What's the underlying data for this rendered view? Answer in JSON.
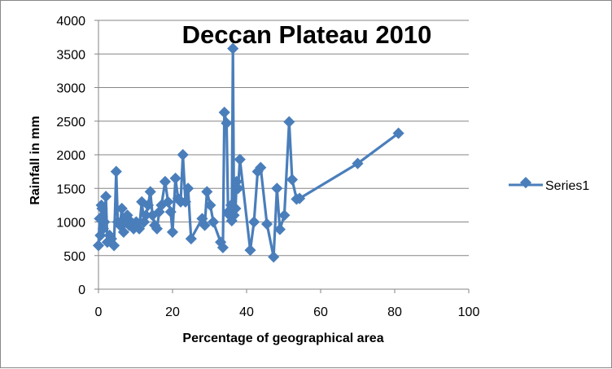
{
  "chart_data": {
    "type": "scatter",
    "title": "Deccan Plateau 2010",
    "xlabel": "Percentage of geographical area",
    "ylabel": "Rainfall in mm",
    "xlim": [
      0,
      100
    ],
    "ylim": [
      0,
      4000
    ],
    "xticks": [
      0,
      20,
      40,
      60,
      80,
      100
    ],
    "yticks": [
      0,
      500,
      1000,
      1500,
      2000,
      2500,
      3000,
      3500,
      4000
    ],
    "grid": true,
    "legend_position": "right",
    "color": "#4a7ebb",
    "series": [
      {
        "name": "Series1",
        "x": [
          0,
          0.3,
          0.5,
          0.8,
          1.0,
          1.3,
          1.6,
          2.0,
          2.4,
          3.0,
          3.5,
          4.2,
          4.8,
          5.2,
          5.8,
          6.3,
          6.8,
          7.3,
          7.8,
          8.3,
          8.8,
          9.5,
          10.2,
          11.0,
          11.7,
          12.3,
          12.8,
          13.4,
          14.0,
          14.6,
          15.2,
          15.8,
          16.4,
          17.0,
          18.0,
          18.8,
          19.5,
          20.0,
          20.8,
          21.5,
          22.2,
          22.8,
          23.5,
          24.2,
          25.0,
          28.0,
          28.7,
          29.3,
          30.2,
          31.0,
          33.0,
          33.6,
          34.0,
          34.6,
          35.0,
          35.4,
          35.8,
          36.0,
          36.3,
          36.6,
          37.0,
          37.3,
          37.7,
          38.2,
          41.0,
          42.0,
          43.0,
          43.8,
          45.5,
          47.3,
          48.2,
          49.0,
          50.2,
          51.5,
          52.3,
          53.5,
          54.3,
          70.0,
          81.0
        ],
        "y": [
          650,
          1050,
          800,
          1250,
          1200,
          900,
          1000,
          1380,
          700,
          800,
          750,
          650,
          1750,
          1000,
          950,
          1200,
          850,
          1050,
          1100,
          950,
          1000,
          900,
          1000,
          900,
          1300,
          1000,
          1100,
          1250,
          1450,
          1100,
          950,
          900,
          1150,
          1250,
          1600,
          1300,
          1150,
          850,
          1650,
          1350,
          1300,
          2000,
          1300,
          1500,
          750,
          1050,
          950,
          1450,
          1250,
          1000,
          700,
          620,
          2630,
          2470,
          1150,
          1100,
          1250,
          1020,
          3580,
          1100,
          1200,
          1600,
          1500,
          1930,
          580,
          1000,
          1750,
          1810,
          970,
          480,
          1500,
          890,
          1100,
          2490,
          1630,
          1340,
          1350,
          1870,
          2320
        ]
      }
    ]
  }
}
